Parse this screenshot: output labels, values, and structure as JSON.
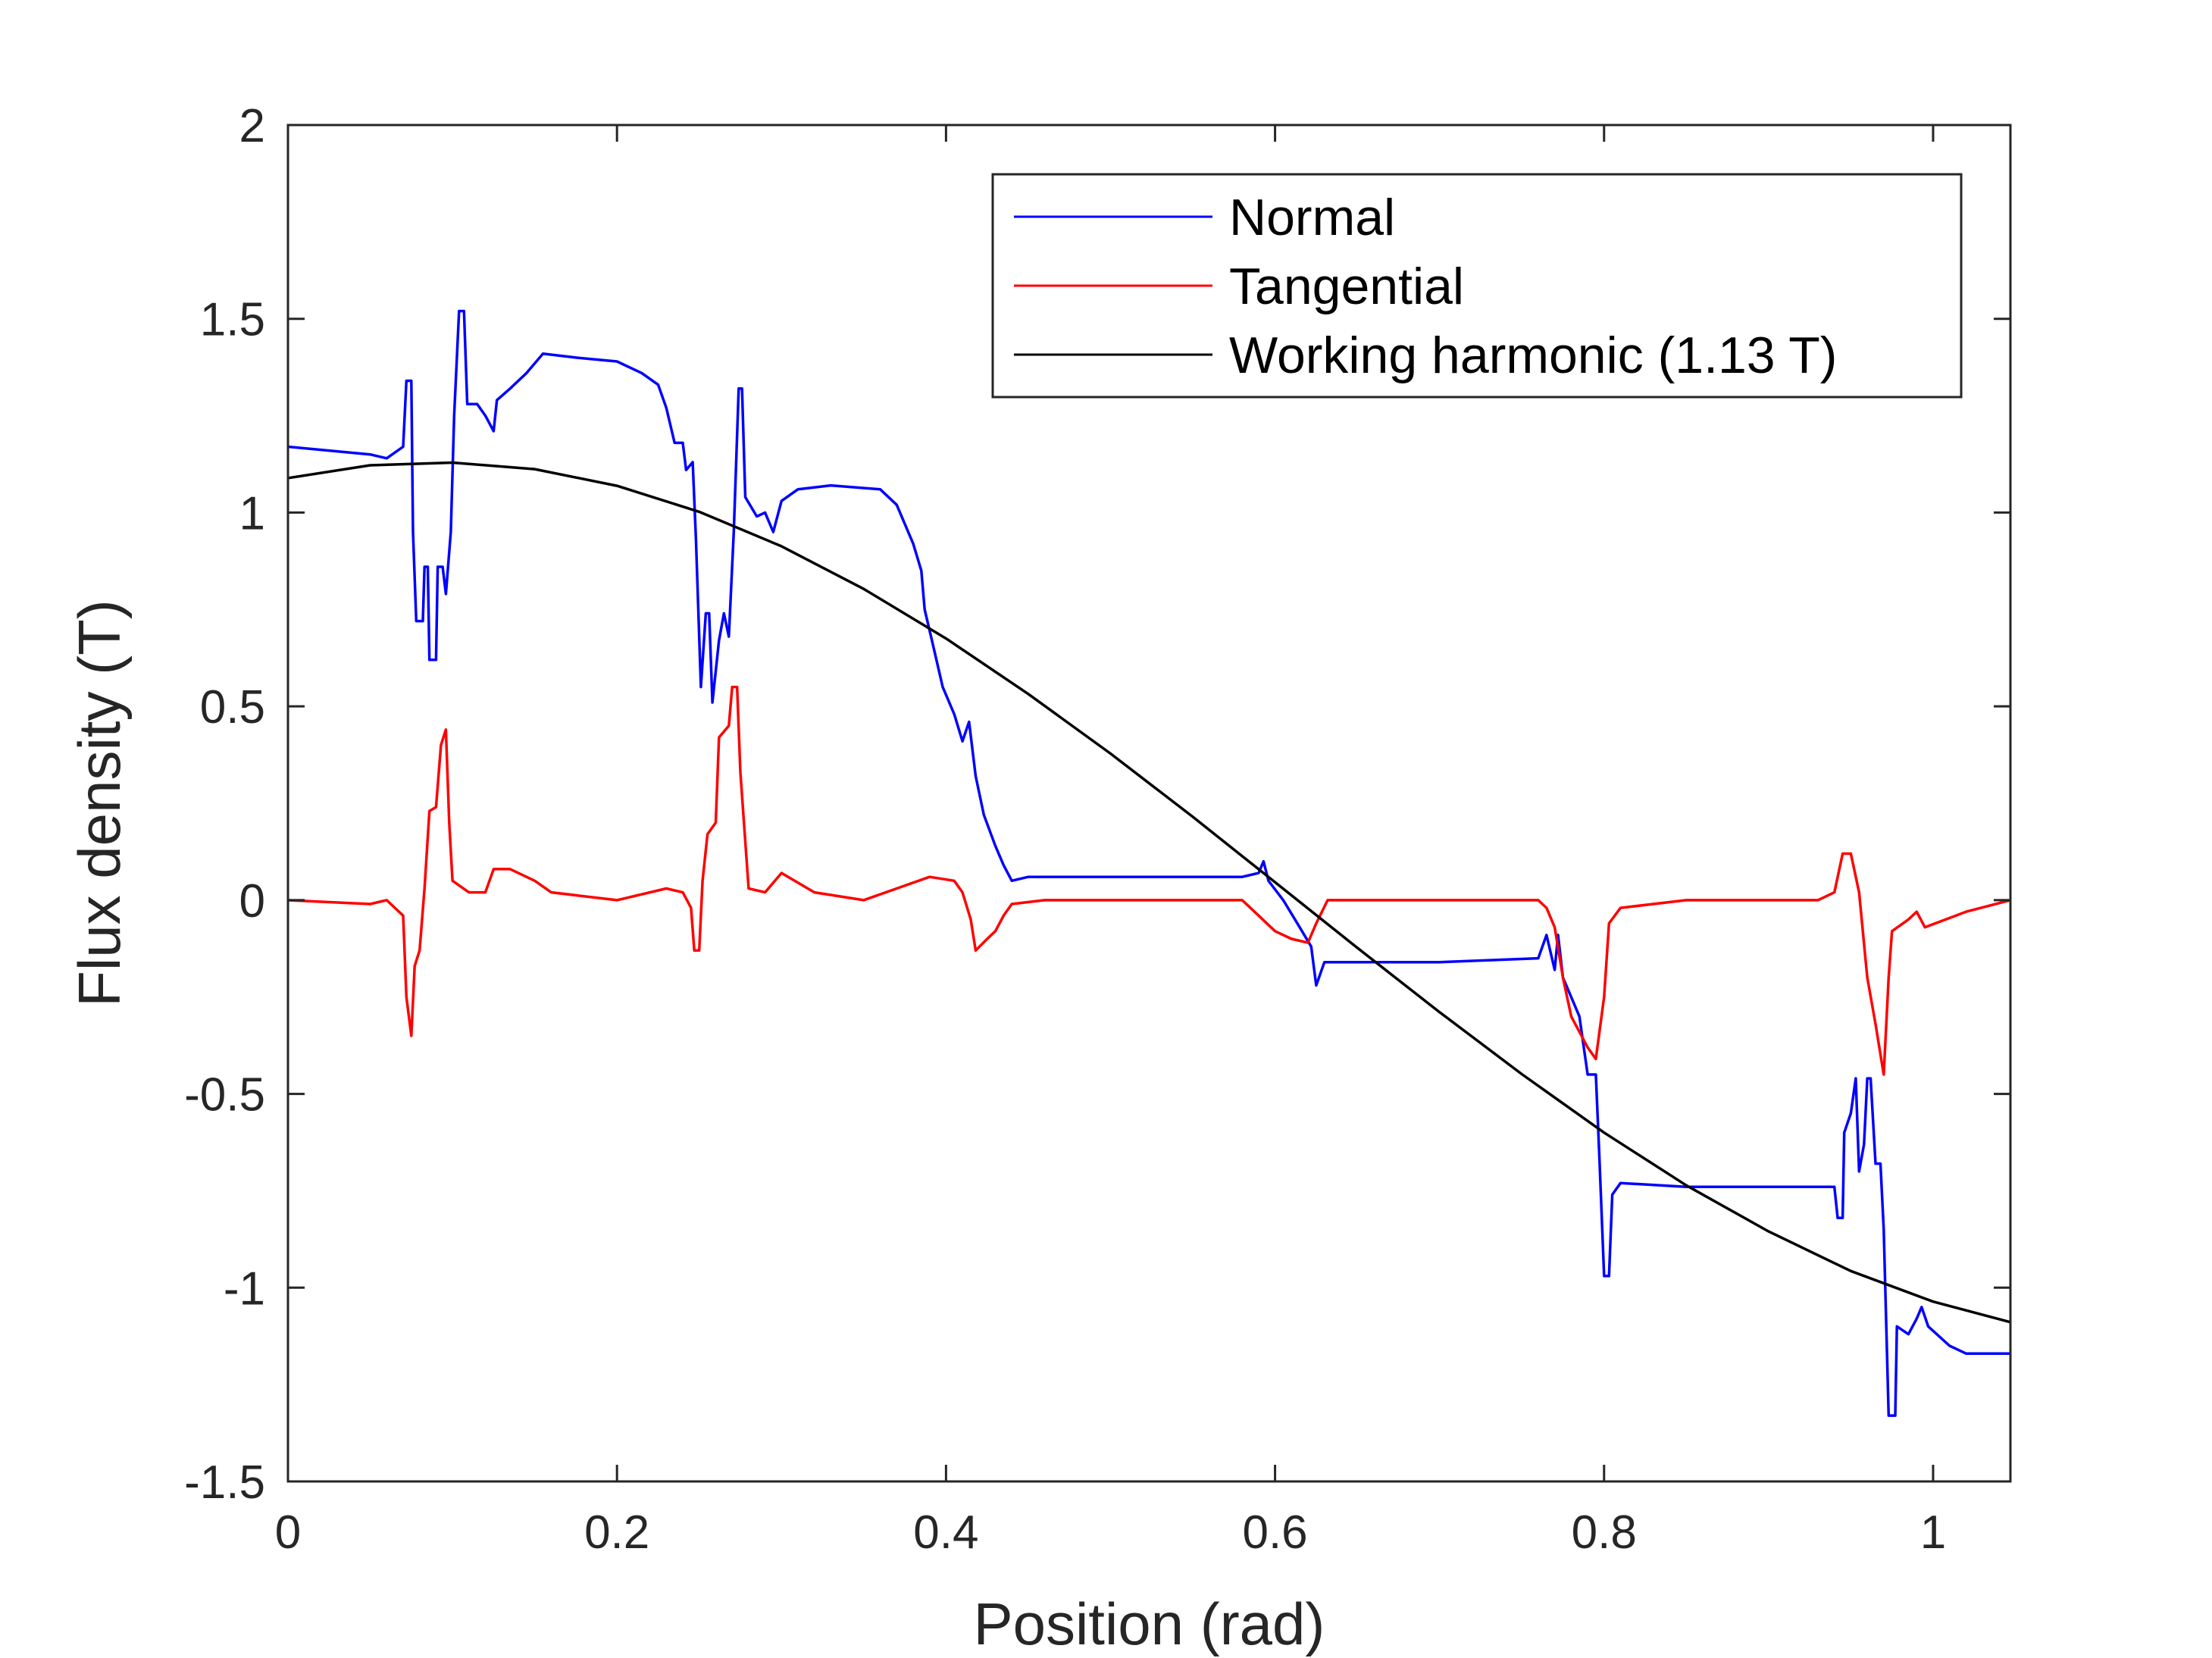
{
  "chart_data": {
    "type": "line",
    "title": "",
    "xlabel": "Position (rad)",
    "ylabel": "Flux density (T)",
    "xlim": [
      0,
      1.047
    ],
    "ylim": [
      -1.5,
      2
    ],
    "xticks": [
      0,
      0.2,
      0.4,
      0.6,
      0.8,
      1
    ],
    "xtick_labels": [
      "0",
      "0.2",
      "0.4",
      "0.6",
      "0.8",
      "1"
    ],
    "yticks": [
      -1.5,
      -1,
      -0.5,
      0,
      0.5,
      1,
      1.5,
      2
    ],
    "ytick_labels": [
      "-1.5",
      "-1",
      "-0.5",
      "0",
      "0.5",
      "1",
      "1.5",
      "2"
    ],
    "grid": false,
    "legend_placement": "top-right",
    "series": [
      {
        "name": "Normal",
        "color": "#0000ff",
        "points": [
          [
            0,
            1.17
          ],
          [
            0.05,
            1.15
          ],
          [
            0.06,
            1.14
          ],
          [
            0.07,
            1.17
          ],
          [
            0.072,
            1.34
          ],
          [
            0.075,
            1.34
          ],
          [
            0.076,
            0.95
          ],
          [
            0.078,
            0.72
          ],
          [
            0.082,
            0.72
          ],
          [
            0.083,
            0.86
          ],
          [
            0.085,
            0.86
          ],
          [
            0.086,
            0.62
          ],
          [
            0.09,
            0.62
          ],
          [
            0.091,
            0.86
          ],
          [
            0.094,
            0.86
          ],
          [
            0.096,
            0.79
          ],
          [
            0.099,
            0.95
          ],
          [
            0.101,
            1.25
          ],
          [
            0.104,
            1.52
          ],
          [
            0.107,
            1.52
          ],
          [
            0.109,
            1.28
          ],
          [
            0.115,
            1.28
          ],
          [
            0.12,
            1.25
          ],
          [
            0.125,
            1.21
          ],
          [
            0.127,
            1.29
          ],
          [
            0.135,
            1.32
          ],
          [
            0.145,
            1.36
          ],
          [
            0.155,
            1.41
          ],
          [
            0.175,
            1.4
          ],
          [
            0.2,
            1.39
          ],
          [
            0.215,
            1.36
          ],
          [
            0.225,
            1.33
          ],
          [
            0.23,
            1.27
          ],
          [
            0.235,
            1.18
          ],
          [
            0.24,
            1.18
          ],
          [
            0.242,
            1.11
          ],
          [
            0.246,
            1.13
          ],
          [
            0.248,
            0.93
          ],
          [
            0.251,
            0.55
          ],
          [
            0.254,
            0.74
          ],
          [
            0.256,
            0.74
          ],
          [
            0.258,
            0.51
          ],
          [
            0.262,
            0.67
          ],
          [
            0.265,
            0.74
          ],
          [
            0.268,
            0.68
          ],
          [
            0.271,
            0.95
          ],
          [
            0.274,
            1.32
          ],
          [
            0.276,
            1.32
          ],
          [
            0.278,
            1.04
          ],
          [
            0.285,
            0.99
          ],
          [
            0.29,
            1.0
          ],
          [
            0.295,
            0.95
          ],
          [
            0.3,
            1.03
          ],
          [
            0.31,
            1.06
          ],
          [
            0.33,
            1.07
          ],
          [
            0.36,
            1.06
          ],
          [
            0.37,
            1.02
          ],
          [
            0.38,
            0.92
          ],
          [
            0.385,
            0.85
          ],
          [
            0.387,
            0.75
          ],
          [
            0.392,
            0.66
          ],
          [
            0.398,
            0.55
          ],
          [
            0.405,
            0.48
          ],
          [
            0.41,
            0.41
          ],
          [
            0.414,
            0.46
          ],
          [
            0.418,
            0.32
          ],
          [
            0.423,
            0.22
          ],
          [
            0.43,
            0.14
          ],
          [
            0.435,
            0.09
          ],
          [
            0.44,
            0.05
          ],
          [
            0.45,
            0.06
          ],
          [
            0.58,
            0.06
          ],
          [
            0.59,
            0.07
          ],
          [
            0.593,
            0.1
          ],
          [
            0.596,
            0.05
          ],
          [
            0.605,
            0.0
          ],
          [
            0.615,
            -0.07
          ],
          [
            0.622,
            -0.12
          ],
          [
            0.625,
            -0.22
          ],
          [
            0.63,
            -0.16
          ],
          [
            0.7,
            -0.16
          ],
          [
            0.76,
            -0.15
          ],
          [
            0.765,
            -0.09
          ],
          [
            0.77,
            -0.18
          ],
          [
            0.772,
            -0.09
          ],
          [
            0.775,
            -0.2
          ],
          [
            0.785,
            -0.3
          ],
          [
            0.79,
            -0.45
          ],
          [
            0.795,
            -0.45
          ],
          [
            0.797,
            -0.65
          ],
          [
            0.8,
            -0.97
          ],
          [
            0.803,
            -0.97
          ],
          [
            0.805,
            -0.76
          ],
          [
            0.81,
            -0.73
          ],
          [
            0.85,
            -0.74
          ],
          [
            0.94,
            -0.74
          ],
          [
            0.942,
            -0.82
          ],
          [
            0.945,
            -0.82
          ],
          [
            0.946,
            -0.6
          ],
          [
            0.95,
            -0.55
          ],
          [
            0.953,
            -0.46
          ],
          [
            0.955,
            -0.7
          ],
          [
            0.958,
            -0.63
          ],
          [
            0.96,
            -0.46
          ],
          [
            0.962,
            -0.46
          ],
          [
            0.965,
            -0.68
          ],
          [
            0.968,
            -0.68
          ],
          [
            0.97,
            -0.85
          ],
          [
            0.973,
            -1.33
          ],
          [
            0.977,
            -1.33
          ],
          [
            0.978,
            -1.1
          ],
          [
            0.985,
            -1.12
          ],
          [
            0.99,
            -1.08
          ],
          [
            0.993,
            -1.05
          ],
          [
            0.997,
            -1.1
          ],
          [
            1.01,
            -1.15
          ],
          [
            1.02,
            -1.17
          ],
          [
            1.047,
            -1.17
          ]
        ]
      },
      {
        "name": "Tangential",
        "color": "#ff0000",
        "points": [
          [
            0,
            0
          ],
          [
            0.05,
            -0.01
          ],
          [
            0.06,
            0.0
          ],
          [
            0.065,
            -0.02
          ],
          [
            0.07,
            -0.04
          ],
          [
            0.072,
            -0.25
          ],
          [
            0.075,
            -0.35
          ],
          [
            0.077,
            -0.17
          ],
          [
            0.08,
            -0.13
          ],
          [
            0.083,
            0.03
          ],
          [
            0.086,
            0.23
          ],
          [
            0.09,
            0.24
          ],
          [
            0.093,
            0.4
          ],
          [
            0.096,
            0.44
          ],
          [
            0.098,
            0.2
          ],
          [
            0.1,
            0.05
          ],
          [
            0.11,
            0.02
          ],
          [
            0.12,
            0.02
          ],
          [
            0.125,
            0.08
          ],
          [
            0.135,
            0.08
          ],
          [
            0.15,
            0.05
          ],
          [
            0.16,
            0.02
          ],
          [
            0.2,
            0.0
          ],
          [
            0.23,
            0.03
          ],
          [
            0.24,
            0.02
          ],
          [
            0.245,
            -0.02
          ],
          [
            0.247,
            -0.13
          ],
          [
            0.25,
            -0.13
          ],
          [
            0.252,
            0.05
          ],
          [
            0.255,
            0.17
          ],
          [
            0.26,
            0.2
          ],
          [
            0.262,
            0.42
          ],
          [
            0.268,
            0.45
          ],
          [
            0.27,
            0.55
          ],
          [
            0.273,
            0.55
          ],
          [
            0.275,
            0.33
          ],
          [
            0.28,
            0.03
          ],
          [
            0.29,
            0.02
          ],
          [
            0.3,
            0.07
          ],
          [
            0.32,
            0.02
          ],
          [
            0.35,
            0.0
          ],
          [
            0.37,
            0.03
          ],
          [
            0.39,
            0.06
          ],
          [
            0.405,
            0.05
          ],
          [
            0.41,
            0.02
          ],
          [
            0.415,
            -0.05
          ],
          [
            0.418,
            -0.13
          ],
          [
            0.425,
            -0.1
          ],
          [
            0.43,
            -0.08
          ],
          [
            0.435,
            -0.04
          ],
          [
            0.44,
            -0.01
          ],
          [
            0.46,
            0.0
          ],
          [
            0.58,
            0.0
          ],
          [
            0.59,
            -0.04
          ],
          [
            0.6,
            -0.08
          ],
          [
            0.61,
            -0.1
          ],
          [
            0.62,
            -0.11
          ],
          [
            0.625,
            -0.06
          ],
          [
            0.632,
            0.0
          ],
          [
            0.76,
            0.0
          ],
          [
            0.765,
            -0.02
          ],
          [
            0.77,
            -0.07
          ],
          [
            0.775,
            -0.2
          ],
          [
            0.78,
            -0.3
          ],
          [
            0.79,
            -0.38
          ],
          [
            0.795,
            -0.41
          ],
          [
            0.8,
            -0.25
          ],
          [
            0.803,
            -0.06
          ],
          [
            0.81,
            -0.02
          ],
          [
            0.85,
            0.0
          ],
          [
            0.93,
            0.0
          ],
          [
            0.94,
            0.02
          ],
          [
            0.945,
            0.12
          ],
          [
            0.95,
            0.12
          ],
          [
            0.955,
            0.02
          ],
          [
            0.96,
            -0.2
          ],
          [
            0.965,
            -0.32
          ],
          [
            0.97,
            -0.45
          ],
          [
            0.973,
            -0.2
          ],
          [
            0.975,
            -0.08
          ],
          [
            0.985,
            -0.05
          ],
          [
            0.99,
            -0.03
          ],
          [
            0.995,
            -0.07
          ],
          [
            1.02,
            -0.03
          ],
          [
            1.047,
            0.0
          ]
        ]
      },
      {
        "name": "Working harmonic (1.13 T)",
        "color": "#000000",
        "points": [
          [
            0,
            1.089
          ],
          [
            0.05,
            1.122
          ],
          [
            0.1,
            1.129
          ],
          [
            0.15,
            1.112
          ],
          [
            0.2,
            1.069
          ],
          [
            0.25,
            1.002
          ],
          [
            0.3,
            0.913
          ],
          [
            0.35,
            0.803
          ],
          [
            0.4,
            0.675
          ],
          [
            0.45,
            0.532
          ],
          [
            0.5,
            0.378
          ],
          [
            0.55,
            0.215
          ],
          [
            0.6,
            0.046
          ],
          [
            0.65,
            -0.123
          ],
          [
            0.7,
            -0.289
          ],
          [
            0.75,
            -0.449
          ],
          [
            0.8,
            -0.6
          ],
          [
            0.85,
            -0.736
          ],
          [
            0.9,
            -0.855
          ],
          [
            0.95,
            -0.957
          ],
          [
            1.0,
            -1.036
          ],
          [
            1.047,
            -1.089
          ]
        ]
      }
    ]
  }
}
